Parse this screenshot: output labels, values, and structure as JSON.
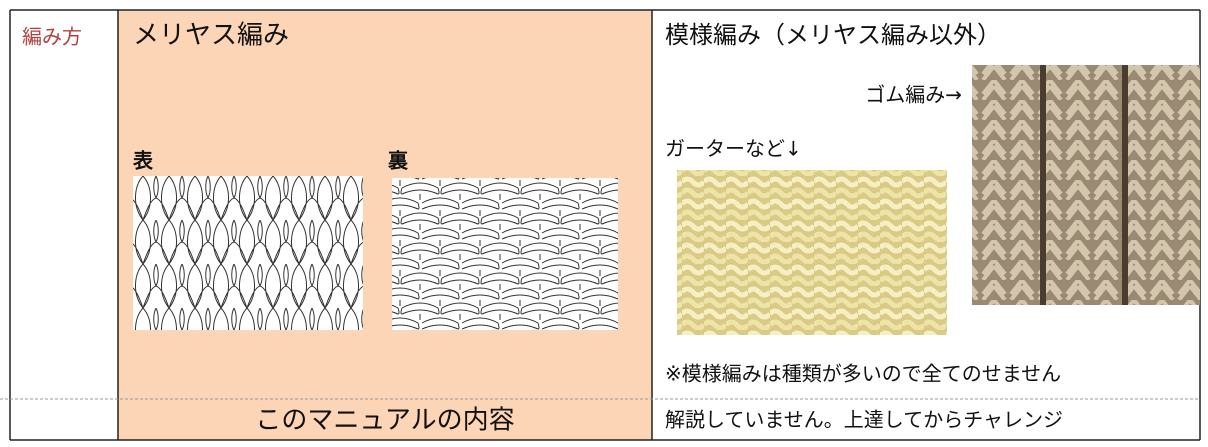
{
  "row_label": "編み方",
  "stockinette": {
    "title": "メリヤス編み",
    "front_label": "表",
    "back_label": "裏",
    "footer": "このマニュアルの内容"
  },
  "pattern": {
    "title": "模様編み（メリヤス編み以外）",
    "rib_caption": "ゴム編み→",
    "garter_caption": "ガーターなど↓",
    "note": "※模様編みは種類が多いので全てのせません",
    "footer": "解説していません。上達してからチャレンジ"
  }
}
